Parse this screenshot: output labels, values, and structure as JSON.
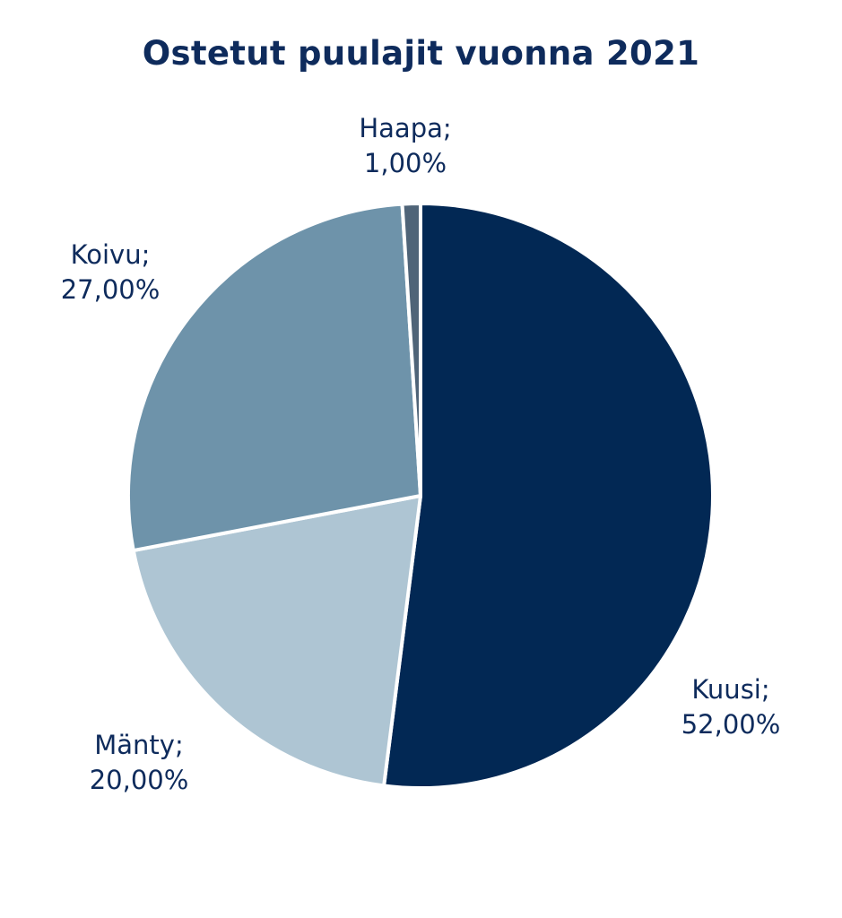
{
  "chart_data": {
    "type": "pie",
    "title": "Ostetut puulajit vuonna 2021",
    "slices": [
      {
        "name": "Kuusi",
        "value": 52,
        "label_line1": "Kuusi;",
        "label_line2": "52,00%",
        "color": "#022854"
      },
      {
        "name": "Mänty",
        "value": 20,
        "label_line1": "Mänty;",
        "label_line2": "20,00%",
        "color": "#aec5d3"
      },
      {
        "name": "Koivu",
        "value": 27,
        "label_line1": "Koivu;",
        "label_line2": "27,00%",
        "color": "#6e93aa"
      },
      {
        "name": "Haapa",
        "value": 1,
        "label_line1": "Haapa;",
        "label_line2": "1,00%",
        "color": "#4f6478"
      }
    ],
    "start_angle_deg": 0,
    "direction": "clockwise",
    "legend": "none"
  }
}
